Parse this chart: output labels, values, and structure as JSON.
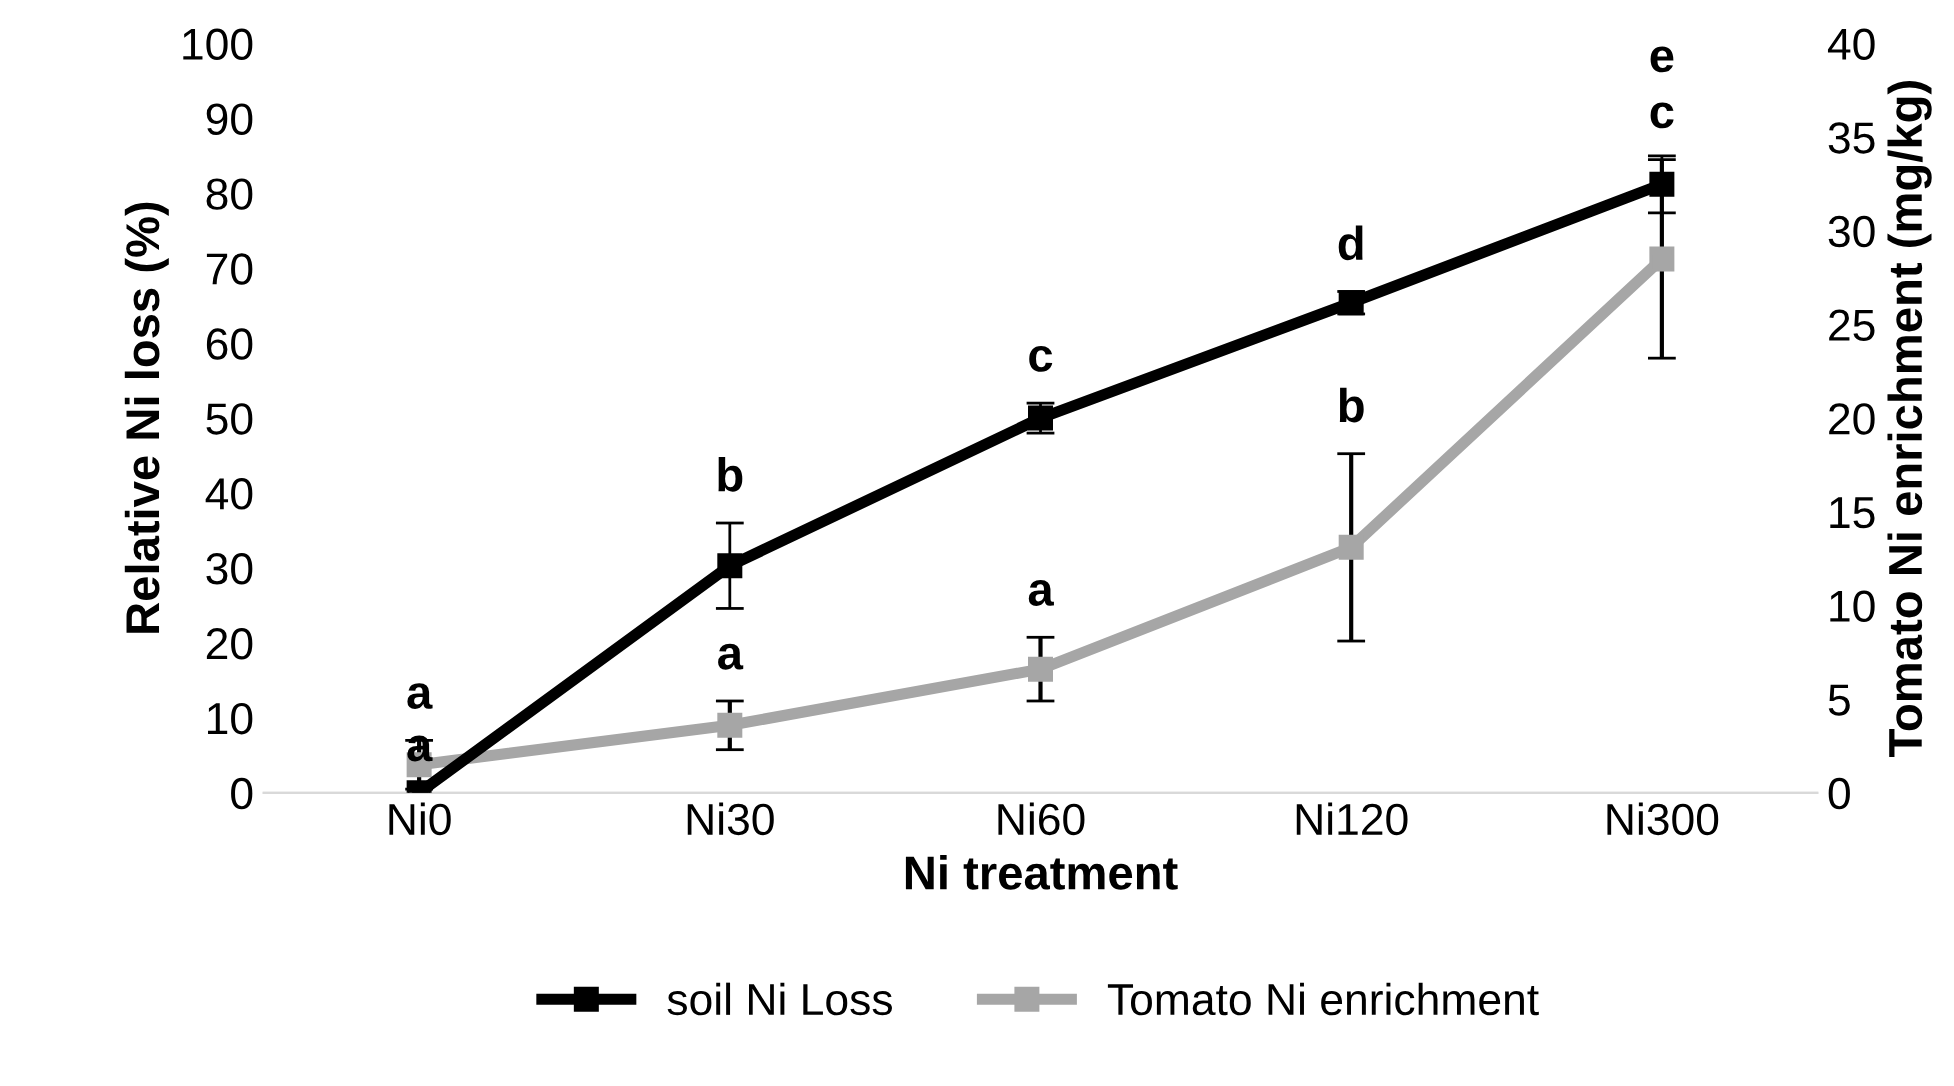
{
  "chart_data": {
    "type": "line",
    "xlabel": "Ni treatment",
    "ylabel": "Relative Ni loss (%)",
    "y2label": "Tomato Ni enrichment (mg/kg)",
    "categories": [
      "Ni0",
      "Ni30",
      "Ni60",
      "Ni120",
      "Ni300"
    ],
    "series": [
      {
        "name": "soil Ni Loss",
        "color": "#000000",
        "values": [
          0,
          30.3,
          50,
          65.4,
          81.2
        ],
        "errors": [
          null,
          5.7,
          2,
          1.5,
          3.8
        ]
      },
      {
        "name": "Tomato Ni enrichment",
        "color": "#a6a6a6",
        "axis": "y2",
        "values": [
          1.5,
          3.6,
          6.6,
          13.1,
          28.5
        ],
        "errors": [
          1.3,
          1.3,
          1.7,
          5,
          5.3
        ]
      }
    ],
    "ylim": [
      0,
      100
    ],
    "yticks": [
      0,
      10,
      20,
      30,
      40,
      50,
      60,
      70,
      80,
      90,
      100
    ],
    "y2lim": [
      0,
      40
    ],
    "y2ticks": [
      0,
      5,
      10,
      15,
      20,
      25,
      30,
      35,
      40
    ],
    "marker": "square",
    "grid": false,
    "legend": "bottom",
    "annotations": [
      "a",
      "a",
      "b",
      "a",
      "c",
      "a",
      "d",
      "b",
      "e",
      "c"
    ]
  }
}
